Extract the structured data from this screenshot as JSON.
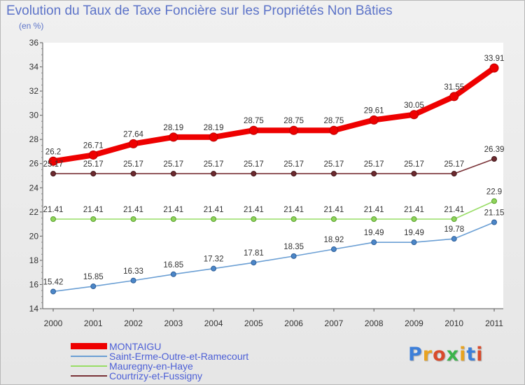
{
  "chart_title": "Evolution du Taux de Taxe Foncière sur les Propriétés Non Bâties",
  "chart_unit": "(en %)",
  "logo_text": "Proxiti",
  "chart_data": {
    "type": "line",
    "title": "Evolution du Taux de Taxe Foncière sur les Propriétés Non Bâties",
    "ylabel": "(en %)",
    "xlabel": "",
    "x": [
      "2000",
      "2001",
      "2002",
      "2003",
      "2004",
      "2005",
      "2006",
      "2007",
      "2008",
      "2009",
      "2010",
      "2011"
    ],
    "ylim": [
      14,
      36
    ],
    "yticks": [
      14,
      16,
      18,
      20,
      22,
      24,
      26,
      28,
      30,
      32,
      34,
      36
    ],
    "grid": false,
    "legend_position": "bottom-left",
    "series": [
      {
        "name": "MONTAIGU",
        "color": "#ee0000",
        "values": [
          26.2,
          26.71,
          27.64,
          28.19,
          28.19,
          28.75,
          28.75,
          28.75,
          29.61,
          30.05,
          31.55,
          33.91
        ],
        "labels": [
          "26.2",
          "26.71",
          "27.64",
          "28.19",
          "28.19",
          "28.75",
          "28.75",
          "28.75",
          "29.61",
          "30.05",
          "31.55",
          "33.91"
        ]
      },
      {
        "name": "Saint-Erme-Outre-et-Ramecourt",
        "color": "#6b9fd4",
        "values": [
          15.42,
          15.85,
          16.33,
          16.85,
          17.32,
          17.81,
          18.35,
          18.92,
          19.49,
          19.49,
          19.78,
          21.15
        ],
        "labels": [
          "15.42",
          "15.85",
          "16.33",
          "16.85",
          "17.32",
          "17.81",
          "18.35",
          "18.92",
          "19.49",
          "19.49",
          "19.78",
          "21.15"
        ]
      },
      {
        "name": "Mauregny-en-Haye",
        "color": "#99dd66",
        "values": [
          21.41,
          21.41,
          21.41,
          21.41,
          21.41,
          21.41,
          21.41,
          21.41,
          21.41,
          21.41,
          21.41,
          22.9
        ],
        "labels": [
          "21.41",
          "21.41",
          "21.41",
          "21.41",
          "21.41",
          "21.41",
          "21.41",
          "21.41",
          "21.41",
          "21.41",
          "21.41",
          "22.9"
        ]
      },
      {
        "name": "Courtrizy-et-Fussigny",
        "color": "#7a3338",
        "values": [
          25.17,
          25.17,
          25.17,
          25.17,
          25.17,
          25.17,
          25.17,
          25.17,
          25.17,
          25.17,
          25.17,
          26.39
        ],
        "labels": [
          "25.17",
          "25.17",
          "25.17",
          "25.17",
          "25.17",
          "25.17",
          "25.17",
          "25.17",
          "25.17",
          "25.17",
          "25.17",
          "26.39"
        ]
      }
    ]
  }
}
